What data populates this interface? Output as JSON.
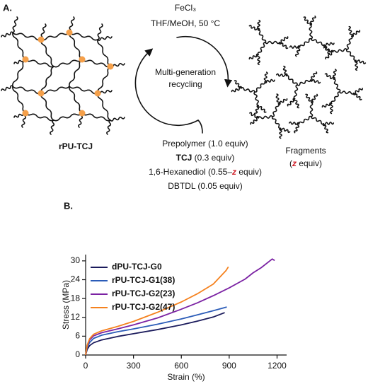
{
  "panel_a": {
    "label": "A.",
    "reagent_top": "FeCl₃",
    "conditions": "THF/MeOH, 50 °C",
    "cycle_text": [
      "Multi-generation",
      "recycling"
    ],
    "network_label": "rPU-TCJ",
    "reagents": [
      [
        "Prepolymer (1.0 equiv)"
      ],
      [
        "TCJ",
        " (0.3 equiv)"
      ],
      [
        "1,6-Hexanediol (0.55–",
        "z",
        " equiv)"
      ],
      [
        "DBTDL (0.05 equiv)"
      ]
    ],
    "fragments": [
      [
        "Fragments"
      ],
      [
        "(",
        "z",
        " equiv)"
      ]
    ]
  },
  "chart_data": {
    "type": "line",
    "panel_label": "B.",
    "x_label": "Strain (%)",
    "y_label": "Stress (MPa)",
    "xlim": [
      0,
      1260
    ],
    "xticks": [
      0,
      300,
      600,
      900,
      1200
    ],
    "ylim": [
      0,
      32
    ],
    "yticks": [
      0,
      6,
      12,
      18,
      24,
      30
    ],
    "series": [
      {
        "name": "dPU-TCJ-G0",
        "color": "#1b1b5c",
        "x": [
          0,
          10,
          25,
          50,
          100,
          200,
          300,
          450,
          600,
          700,
          800,
          872
        ],
        "values": [
          0,
          1.8,
          3,
          3.9,
          4.8,
          5.9,
          6.8,
          8.1,
          9.6,
          10.8,
          12.1,
          13.5
        ]
      },
      {
        "name": "rPU-TCJ-G1(38)",
        "color": "#2b5cb8",
        "x": [
          0,
          10,
          25,
          50,
          100,
          200,
          300,
          450,
          600,
          700,
          800,
          885
        ],
        "values": [
          0,
          2.5,
          4,
          5.3,
          6.3,
          7.4,
          8.3,
          9.8,
          11.5,
          12.8,
          14.1,
          15.3
        ]
      },
      {
        "name": "rPU-TCJ-G2(23)",
        "color": "#7b22a3",
        "x": [
          0,
          10,
          25,
          50,
          100,
          200,
          300,
          450,
          600,
          700,
          800,
          900,
          1000,
          1050,
          1100,
          1170,
          1185
        ],
        "values": [
          0,
          3,
          4.8,
          6.1,
          7.1,
          8.3,
          9.6,
          11.8,
          14.6,
          16.6,
          18.9,
          21.4,
          24.2,
          26.2,
          27.8,
          30.6,
          30.1
        ]
      },
      {
        "name": "rPU-TCJ-G2(47)",
        "color": "#f5821f",
        "x": [
          0,
          10,
          25,
          50,
          100,
          200,
          300,
          450,
          600,
          700,
          800,
          880,
          895
        ],
        "values": [
          0,
          3.2,
          5.2,
          6.6,
          7.7,
          9.1,
          10.7,
          13.6,
          16.9,
          19.5,
          22.6,
          26.9,
          28.1
        ]
      }
    ]
  }
}
